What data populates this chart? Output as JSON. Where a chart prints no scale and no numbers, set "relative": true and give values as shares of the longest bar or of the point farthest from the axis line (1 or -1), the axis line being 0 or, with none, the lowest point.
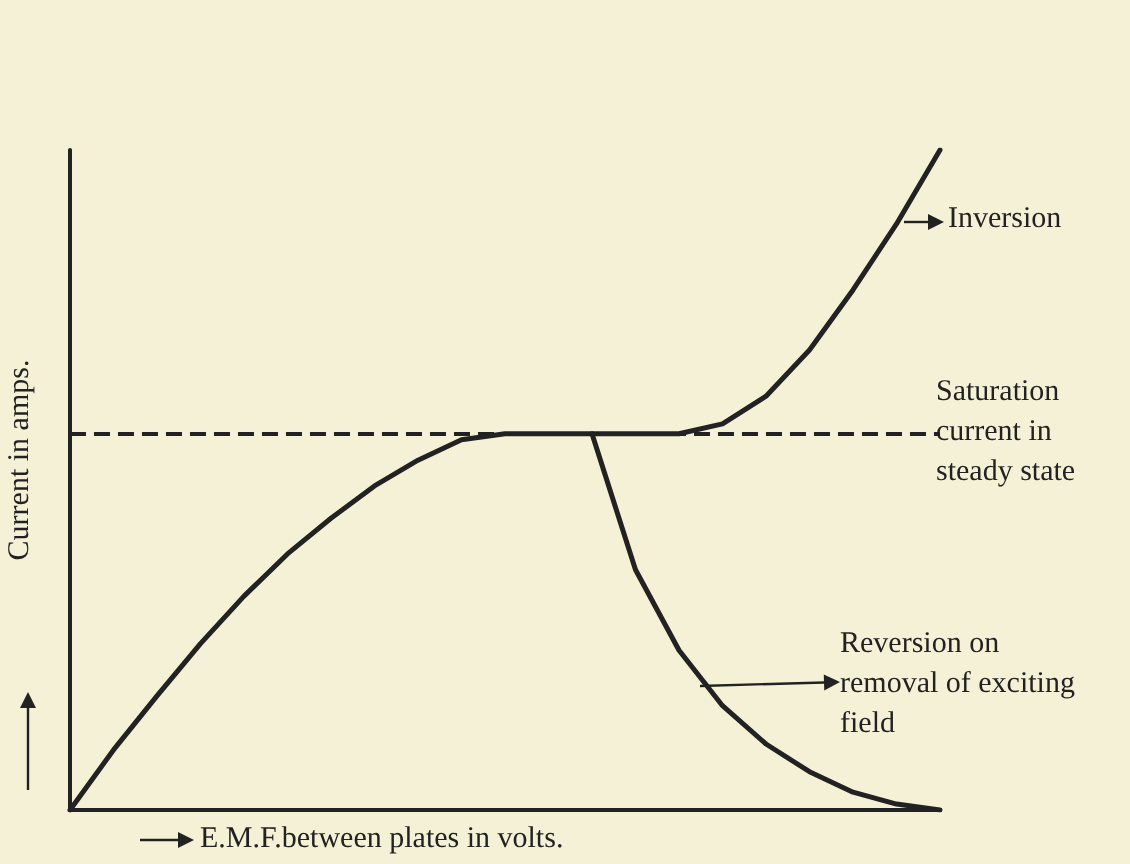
{
  "chart_data": {
    "type": "line",
    "xlabel": "E.M.F.between plates in volts.",
    "ylabel": "Current in amps.",
    "categories": [
      null,
      null,
      null,
      null,
      null,
      null,
      null,
      null,
      null,
      null,
      null,
      null,
      null,
      null,
      null,
      null,
      null,
      null,
      null,
      null,
      null
    ],
    "series": [
      {
        "color": "#222222",
        "values": [
          0,
          0.091,
          0.173,
          0.252,
          0.324,
          0.388,
          0.442,
          0.491,
          0.53,
          0.561,
          0.57,
          0.57,
          0.57,
          0.57,
          0.57,
          0.585,
          0.627,
          0.697,
          0.788,
          0.888,
          1
        ]
      },
      {
        "color": "#222222",
        "values": [
          null,
          null,
          null,
          null,
          null,
          null,
          null,
          null,
          null,
          null,
          null,
          null,
          0.57,
          0.364,
          0.242,
          0.158,
          0.1,
          0.058,
          0.027,
          0.009,
          0
        ]
      }
    ],
    "relative": true,
    "marker": "none",
    "line_style": "solid",
    "ref_lines": [
      {
        "axis": "y",
        "value": 0.57,
        "color": "#222222",
        "line_style": "dashed"
      }
    ],
    "annotations": [
      "Inversion",
      "Saturation current in steady state",
      "Reversion on removal of exciting field"
    ]
  }
}
